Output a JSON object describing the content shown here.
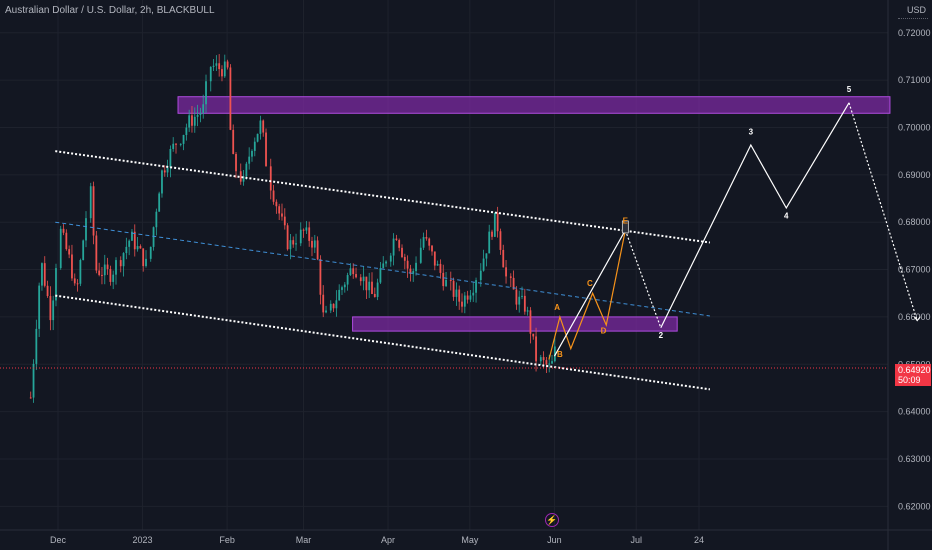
{
  "header": {
    "title": "Australian Dollar / U.S. Dollar, 2h, BLACKBULL",
    "currency": "USD"
  },
  "last_price": {
    "value": "0.64920",
    "countdown": "50:09"
  },
  "colors": {
    "background": "#131722",
    "grid": "#1e222d",
    "axis_text": "#b2b5be",
    "candle_up": "#26a69a",
    "candle_down": "#ef5350",
    "zone_fill": "#7b2aa0",
    "zone_stroke": "#b04ce0",
    "projection_white": "#ffffff",
    "projection_orange": "#f7931a",
    "midline_blue": "#2962ff",
    "price_tag": "#f23645"
  },
  "chart_data": {
    "type": "candlestick",
    "ylim": [
      0.615,
      0.7265
    ],
    "y_ticks": [
      "0.72000",
      "0.71000",
      "0.70000",
      "0.69000",
      "0.68000",
      "0.67000",
      "0.66000",
      "0.65000",
      "0.64000",
      "0.63000",
      "0.62000"
    ],
    "x_ticks": [
      "Dec",
      "2023",
      "Feb",
      "Mar",
      "Apr",
      "May",
      "Jun",
      "Jul",
      "24"
    ],
    "price_path": [
      [
        "2022-11-21",
        0.643
      ],
      [
        "2022-11-25",
        0.672
      ],
      [
        "2022-11-29",
        0.66
      ],
      [
        "2022-12-02",
        0.678
      ],
      [
        "2022-12-06",
        0.671
      ],
      [
        "2022-12-08",
        0.664
      ],
      [
        "2022-12-13",
        0.686
      ],
      [
        "2022-12-15",
        0.67
      ],
      [
        "2022-12-21",
        0.669
      ],
      [
        "2022-12-28",
        0.677
      ],
      [
        "2023-01-03",
        0.671
      ],
      [
        "2023-01-08",
        0.69
      ],
      [
        "2023-01-12",
        0.695
      ],
      [
        "2023-01-18",
        0.701
      ],
      [
        "2023-01-24",
        0.704
      ],
      [
        "2023-01-26",
        0.713
      ],
      [
        "2023-02-02",
        0.712
      ],
      [
        "2023-02-03",
        0.694
      ],
      [
        "2023-02-07",
        0.688
      ],
      [
        "2023-02-10",
        0.696
      ],
      [
        "2023-02-14",
        0.701
      ],
      [
        "2023-02-17",
        0.688
      ],
      [
        "2023-02-24",
        0.675
      ],
      [
        "2023-03-01",
        0.678
      ],
      [
        "2023-03-06",
        0.675
      ],
      [
        "2023-03-09",
        0.659
      ],
      [
        "2023-03-14",
        0.665
      ],
      [
        "2023-03-20",
        0.671
      ],
      [
        "2023-03-27",
        0.664
      ],
      [
        "2023-04-04",
        0.678
      ],
      [
        "2023-04-10",
        0.668
      ],
      [
        "2023-04-14",
        0.677
      ],
      [
        "2023-04-19",
        0.671
      ],
      [
        "2023-04-24",
        0.666
      ],
      [
        "2023-04-28",
        0.663
      ],
      [
        "2023-05-03",
        0.667
      ],
      [
        "2023-05-09",
        0.678
      ],
      [
        "2023-05-11",
        0.681
      ],
      [
        "2023-05-15",
        0.668
      ],
      [
        "2023-05-18",
        0.664
      ],
      [
        "2023-05-22",
        0.662
      ],
      [
        "2023-05-26",
        0.651
      ],
      [
        "2023-05-31",
        0.649
      ],
      [
        "2023-06-02",
        0.654
      ]
    ],
    "demand_zone": {
      "x": [
        "2023-03-19",
        "2023-07-16"
      ],
      "y": [
        0.657,
        0.66
      ]
    },
    "supply_zone": {
      "x": [
        "2023-01-14",
        "2023-10-02"
      ],
      "y": [
        0.703,
        0.7065
      ]
    },
    "channel_upper": [
      [
        "2022-11-30",
        0.695
      ],
      [
        "2023-07-28",
        0.6757
      ]
    ],
    "channel_lower": [
      [
        "2022-11-30",
        0.6645
      ],
      [
        "2023-07-28",
        0.6447
      ]
    ],
    "channel_mid": [
      [
        "2022-11-30",
        0.68
      ],
      [
        "2023-07-28",
        0.6602
      ]
    ],
    "wave_white": [
      [
        "2023-06-01",
        0.6517
      ],
      [
        "2023-06-27",
        0.6783
      ],
      [
        "2023-07-10",
        0.6577
      ],
      [
        "2023-08-12",
        0.6963
      ],
      [
        "2023-08-25",
        0.683
      ],
      [
        "2023-09-17",
        0.7052
      ],
      [
        "2023-10-12",
        0.6592
      ]
    ],
    "wave_orange": [
      [
        "2023-05-30",
        0.651
      ],
      [
        "2023-06-03",
        0.66
      ],
      [
        "2023-06-07",
        0.6533
      ],
      [
        "2023-06-15",
        0.665
      ],
      [
        "2023-06-20",
        0.6583
      ],
      [
        "2023-06-27",
        0.6783
      ]
    ],
    "projection_tip": [
      "2023-06-27",
      0.679
    ],
    "wave_labels": [
      {
        "text": "A",
        "x": "2023-06-02",
        "y": 0.6615,
        "color": "orange"
      },
      {
        "text": "B",
        "x": "2023-06-03",
        "y": 0.6515,
        "color": "orange"
      },
      {
        "text": "C",
        "x": "2023-06-14",
        "y": 0.6665,
        "color": "orange"
      },
      {
        "text": "D",
        "x": "2023-06-19",
        "y": 0.6565,
        "color": "orange"
      },
      {
        "text": "E",
        "x": "2023-06-27",
        "y": 0.6797,
        "color": "orange"
      },
      {
        "text": "2",
        "x": "2023-07-10",
        "y": 0.6555,
        "color": "white"
      },
      {
        "text": "3",
        "x": "2023-08-12",
        "y": 0.6985,
        "color": "white"
      },
      {
        "text": "4",
        "x": "2023-08-25",
        "y": 0.6808,
        "color": "white"
      },
      {
        "text": "5",
        "x": "2023-09-17",
        "y": 0.7075,
        "color": "white"
      }
    ]
  }
}
